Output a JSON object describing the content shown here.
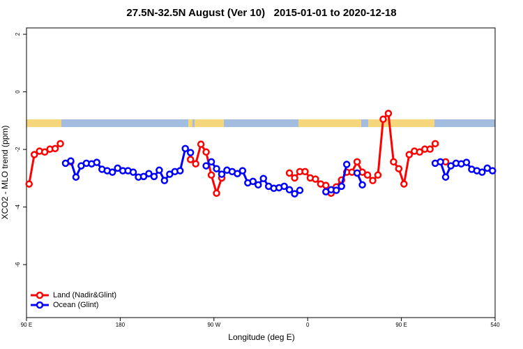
{
  "chart_data": {
    "type": "line",
    "title": "27.5N-32.5N August (Ver 10)   2015-01-01 to 2020-12-18",
    "xlabel": "Longitude (deg E)",
    "ylabel": "XCO2 - MLO trend (ppm)",
    "x": [
      92.5,
      97.5,
      102.5,
      107.5,
      112.5,
      117.5,
      122.5,
      127.5,
      132.5,
      137.5,
      142.5,
      147.5,
      152.5,
      157.5,
      162.5,
      167.5,
      172.5,
      177.5,
      182.5,
      187.5,
      192.5,
      197.5,
      202.5,
      207.5,
      212.5,
      217.5,
      222.5,
      227.5,
      232.5,
      237.5,
      242.5,
      247.5,
      252.5,
      257.5,
      262.5,
      267.5,
      272.5,
      277.5,
      282.5,
      287.5,
      292.5,
      297.5,
      302.5,
      307.5,
      312.5,
      317.5,
      322.5,
      327.5,
      332.5,
      337.5,
      342.5,
      347.5,
      352.5,
      357.5,
      362.5,
      367.5,
      372.5,
      377.5,
      382.5,
      387.5,
      392.5,
      397.5,
      402.5,
      407.5,
      412.5,
      417.5,
      422.5,
      427.5,
      432.5,
      437.5,
      442.5,
      447.5,
      452.5,
      457.5,
      462.5,
      467.5,
      472.5,
      477.5,
      482.5,
      487.5,
      492.5,
      497.5,
      502.5,
      507.5,
      512.5,
      517.5,
      522.5,
      527.5,
      532.5,
      537.5
    ],
    "series": [
      {
        "name": "Land (Nadir&Glint)",
        "color": "#ff0000",
        "values": [
          -3.2,
          -2.18,
          -2.06,
          -2.09,
          -1.99,
          -1.97,
          -1.8,
          null,
          -2.43,
          null,
          null,
          null,
          null,
          null,
          null,
          null,
          null,
          null,
          null,
          null,
          null,
          null,
          null,
          null,
          null,
          null,
          null,
          null,
          null,
          null,
          null,
          -2.35,
          -2.5,
          -1.82,
          -2.09,
          -2.89,
          -3.52,
          -2.99,
          null,
          null,
          null,
          null,
          null,
          null,
          null,
          null,
          null,
          null,
          null,
          null,
          -2.82,
          -2.99,
          -2.77,
          -2.77,
          -2.99,
          -3.03,
          -3.2,
          -3.25,
          -3.52,
          -3.3,
          -3.06,
          -2.79,
          -2.79,
          -2.43,
          -2.79,
          -2.89,
          -3.08,
          -2.89,
          -0.95,
          -0.75,
          -2.43,
          -2.67,
          -3.2,
          -2.18,
          -2.06,
          -2.09,
          -1.99,
          -1.99,
          -1.8,
          null,
          -2.43,
          null,
          null,
          null,
          null,
          null,
          null,
          null,
          null,
          null
        ]
      },
      {
        "name": "Ocean (Glint)",
        "color": "#0000ff",
        "values": [
          null,
          null,
          null,
          null,
          null,
          null,
          null,
          -2.48,
          -2.4,
          -2.96,
          -2.57,
          -2.48,
          -2.5,
          -2.45,
          -2.69,
          -2.74,
          -2.79,
          -2.65,
          -2.74,
          -2.74,
          -2.79,
          -2.96,
          -2.94,
          -2.84,
          -2.94,
          -2.72,
          -3.08,
          -2.86,
          -2.77,
          -2.74,
          -1.97,
          -2.11,
          null,
          null,
          -2.57,
          -2.43,
          -2.67,
          -2.86,
          -2.72,
          -2.77,
          -2.84,
          -2.74,
          -3.16,
          -3.11,
          -3.23,
          -3.01,
          -3.28,
          -3.35,
          -3.33,
          -3.28,
          -3.4,
          -3.54,
          -3.42,
          null,
          null,
          null,
          null,
          -3.47,
          -3.4,
          -3.42,
          -3.28,
          -2.52,
          null,
          -2.82,
          -3.23,
          null,
          null,
          null,
          null,
          null,
          null,
          null,
          null,
          null,
          null,
          null,
          null,
          null,
          -2.48,
          -2.43,
          -2.96,
          -2.57,
          -2.48,
          -2.5,
          -2.45,
          -2.69,
          -2.74,
          -2.79,
          -2.65,
          -2.74
        ]
      }
    ],
    "xlim": [
      90,
      540
    ],
    "xticks": [
      {
        "value": 90,
        "label": "90 E"
      },
      180,
      {
        "value": 270,
        "label": "90 W"
      },
      {
        "value": 360,
        "label": "0"
      },
      {
        "value": 450,
        "label": "90 E"
      },
      540
    ],
    "ylim": [
      -7.84,
      2.22
    ],
    "yticks": [
      -6,
      -4,
      -2,
      0,
      2
    ],
    "legend": "bottom-left"
  }
}
